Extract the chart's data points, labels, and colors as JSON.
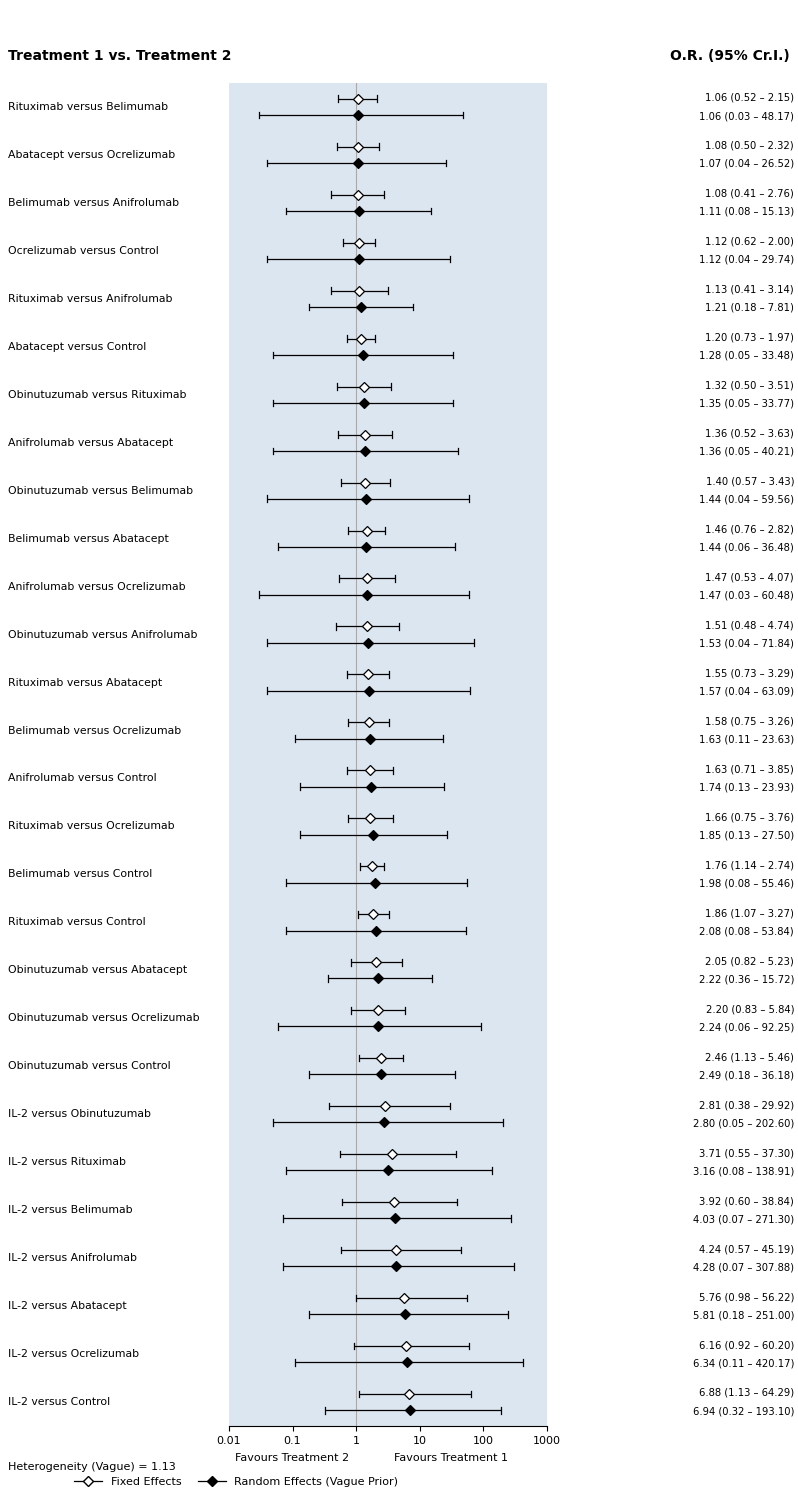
{
  "title_left": "Treatment 1 vs. Treatment 2",
  "title_right": "O.R. (95% Cr.I.)",
  "rows": [
    {
      "label": "Rituximab versus Belimumab",
      "fixed_or": 1.06,
      "fixed_lo": 0.52,
      "fixed_hi": 2.15,
      "random_or": 1.06,
      "random_lo": 0.03,
      "random_hi": 48.17,
      "text1": "1.06 (0.52 – 2.15)",
      "text2": "1.06 (0.03 – 48.17)"
    },
    {
      "label": "Abatacept versus Ocrelizumab",
      "fixed_or": 1.08,
      "fixed_lo": 0.5,
      "fixed_hi": 2.32,
      "random_or": 1.07,
      "random_lo": 0.04,
      "random_hi": 26.52,
      "text1": "1.08 (0.50 – 2.32)",
      "text2": "1.07 (0.04 – 26.52)"
    },
    {
      "label": "Belimumab versus Anifrolumab",
      "fixed_or": 1.08,
      "fixed_lo": 0.41,
      "fixed_hi": 2.76,
      "random_or": 1.11,
      "random_lo": 0.08,
      "random_hi": 15.13,
      "text1": "1.08 (0.41 – 2.76)",
      "text2": "1.11 (0.08 – 15.13)"
    },
    {
      "label": "Ocrelizumab versus Control",
      "fixed_or": 1.12,
      "fixed_lo": 0.62,
      "fixed_hi": 2.0,
      "random_or": 1.12,
      "random_lo": 0.04,
      "random_hi": 29.74,
      "text1": "1.12 (0.62 – 2.00)",
      "text2": "1.12 (0.04 – 29.74)"
    },
    {
      "label": "Rituximab versus Anifrolumab",
      "fixed_or": 1.13,
      "fixed_lo": 0.41,
      "fixed_hi": 3.14,
      "random_or": 1.21,
      "random_lo": 0.18,
      "random_hi": 7.81,
      "text1": "1.13 (0.41 – 3.14)",
      "text2": "1.21 (0.18 – 7.81)"
    },
    {
      "label": "Abatacept versus Control",
      "fixed_or": 1.2,
      "fixed_lo": 0.73,
      "fixed_hi": 1.97,
      "random_or": 1.28,
      "random_lo": 0.05,
      "random_hi": 33.48,
      "text1": "1.20 (0.73 – 1.97)",
      "text2": "1.28 (0.05 – 33.48)"
    },
    {
      "label": "Obinutuzumab versus Rituximab",
      "fixed_or": 1.32,
      "fixed_lo": 0.5,
      "fixed_hi": 3.51,
      "random_or": 1.35,
      "random_lo": 0.05,
      "random_hi": 33.77,
      "text1": "1.32 (0.50 – 3.51)",
      "text2": "1.35 (0.05 – 33.77)"
    },
    {
      "label": "Anifrolumab versus Abatacept",
      "fixed_or": 1.36,
      "fixed_lo": 0.52,
      "fixed_hi": 3.63,
      "random_or": 1.36,
      "random_lo": 0.05,
      "random_hi": 40.21,
      "text1": "1.36 (0.52 – 3.63)",
      "text2": "1.36 (0.05 – 40.21)"
    },
    {
      "label": "Obinutuzumab versus Belimumab",
      "fixed_or": 1.4,
      "fixed_lo": 0.57,
      "fixed_hi": 3.43,
      "random_or": 1.44,
      "random_lo": 0.04,
      "random_hi": 59.56,
      "text1": "1.40 (0.57 – 3.43)",
      "text2": "1.44 (0.04 – 59.56)"
    },
    {
      "label": "Belimumab versus Abatacept",
      "fixed_or": 1.46,
      "fixed_lo": 0.76,
      "fixed_hi": 2.82,
      "random_or": 1.44,
      "random_lo": 0.06,
      "random_hi": 36.48,
      "text1": "1.46 (0.76 – 2.82)",
      "text2": "1.44 (0.06 – 36.48)"
    },
    {
      "label": "Anifrolumab versus Ocrelizumab",
      "fixed_or": 1.47,
      "fixed_lo": 0.53,
      "fixed_hi": 4.07,
      "random_or": 1.47,
      "random_lo": 0.03,
      "random_hi": 60.48,
      "text1": "1.47 (0.53 – 4.07)",
      "text2": "1.47 (0.03 – 60.48)"
    },
    {
      "label": "Obinutuzumab versus Anifrolumab",
      "fixed_or": 1.51,
      "fixed_lo": 0.48,
      "fixed_hi": 4.74,
      "random_or": 1.53,
      "random_lo": 0.04,
      "random_hi": 71.84,
      "text1": "1.51 (0.48 – 4.74)",
      "text2": "1.53 (0.04 – 71.84)"
    },
    {
      "label": "Rituximab versus Abatacept",
      "fixed_or": 1.55,
      "fixed_lo": 0.73,
      "fixed_hi": 3.29,
      "random_or": 1.57,
      "random_lo": 0.04,
      "random_hi": 63.09,
      "text1": "1.55 (0.73 – 3.29)",
      "text2": "1.57 (0.04 – 63.09)"
    },
    {
      "label": "Belimumab versus Ocrelizumab",
      "fixed_or": 1.58,
      "fixed_lo": 0.75,
      "fixed_hi": 3.26,
      "random_or": 1.63,
      "random_lo": 0.11,
      "random_hi": 23.63,
      "text1": "1.58 (0.75 – 3.26)",
      "text2": "1.63 (0.11 – 23.63)"
    },
    {
      "label": "Anifrolumab versus Control",
      "fixed_or": 1.63,
      "fixed_lo": 0.71,
      "fixed_hi": 3.85,
      "random_or": 1.74,
      "random_lo": 0.13,
      "random_hi": 23.93,
      "text1": "1.63 (0.71 – 3.85)",
      "text2": "1.74 (0.13 – 23.93)"
    },
    {
      "label": "Rituximab versus Ocrelizumab",
      "fixed_or": 1.66,
      "fixed_lo": 0.75,
      "fixed_hi": 3.76,
      "random_or": 1.85,
      "random_lo": 0.13,
      "random_hi": 27.5,
      "text1": "1.66 (0.75 – 3.76)",
      "text2": "1.85 (0.13 – 27.50)"
    },
    {
      "label": "Belimumab versus Control",
      "fixed_or": 1.76,
      "fixed_lo": 1.14,
      "fixed_hi": 2.74,
      "random_or": 1.98,
      "random_lo": 0.08,
      "random_hi": 55.46,
      "text1": "1.76 (1.14 – 2.74)",
      "text2": "1.98 (0.08 – 55.46)"
    },
    {
      "label": "Rituximab versus Control",
      "fixed_or": 1.86,
      "fixed_lo": 1.07,
      "fixed_hi": 3.27,
      "random_or": 2.08,
      "random_lo": 0.08,
      "random_hi": 53.84,
      "text1": "1.86 (1.07 – 3.27)",
      "text2": "2.08 (0.08 – 53.84)"
    },
    {
      "label": "Obinutuzumab versus Abatacept",
      "fixed_or": 2.05,
      "fixed_lo": 0.82,
      "fixed_hi": 5.23,
      "random_or": 2.22,
      "random_lo": 0.36,
      "random_hi": 15.72,
      "text1": "2.05 (0.82 – 5.23)",
      "text2": "2.22 (0.36 – 15.72)"
    },
    {
      "label": "Obinutuzumab versus Ocrelizumab",
      "fixed_or": 2.2,
      "fixed_lo": 0.83,
      "fixed_hi": 5.84,
      "random_or": 2.24,
      "random_lo": 0.06,
      "random_hi": 92.25,
      "text1": "2.20 (0.83 – 5.84)",
      "text2": "2.24 (0.06 – 92.25)"
    },
    {
      "label": "Obinutuzumab versus Control",
      "fixed_or": 2.46,
      "fixed_lo": 1.13,
      "fixed_hi": 5.46,
      "random_or": 2.49,
      "random_lo": 0.18,
      "random_hi": 36.18,
      "text1": "2.46 (1.13 – 5.46)",
      "text2": "2.49 (0.18 – 36.18)"
    },
    {
      "label": "IL-2 versus Obinutuzumab",
      "fixed_or": 2.81,
      "fixed_lo": 0.38,
      "fixed_hi": 29.92,
      "random_or": 2.8,
      "random_lo": 0.05,
      "random_hi": 202.6,
      "text1": "2.81 (0.38 – 29.92)",
      "text2": "2.80 (0.05 – 202.60)"
    },
    {
      "label": "IL-2 versus Rituximab",
      "fixed_or": 3.71,
      "fixed_lo": 0.55,
      "fixed_hi": 37.3,
      "random_or": 3.16,
      "random_lo": 0.08,
      "random_hi": 138.91,
      "text1": "3.71 (0.55 – 37.30)",
      "text2": "3.16 (0.08 – 138.91)"
    },
    {
      "label": "IL-2 versus Belimumab",
      "fixed_or": 3.92,
      "fixed_lo": 0.6,
      "fixed_hi": 38.84,
      "random_or": 4.03,
      "random_lo": 0.07,
      "random_hi": 271.3,
      "text1": "3.92 (0.60 – 38.84)",
      "text2": "4.03 (0.07 – 271.30)"
    },
    {
      "label": "IL-2 versus Anifrolumab",
      "fixed_or": 4.24,
      "fixed_lo": 0.57,
      "fixed_hi": 45.19,
      "random_or": 4.28,
      "random_lo": 0.07,
      "random_hi": 307.88,
      "text1": "4.24 (0.57 – 45.19)",
      "text2": "4.28 (0.07 – 307.88)"
    },
    {
      "label": "IL-2 versus Abatacept",
      "fixed_or": 5.76,
      "fixed_lo": 0.98,
      "fixed_hi": 56.22,
      "random_or": 5.81,
      "random_lo": 0.18,
      "random_hi": 251.0,
      "text1": "5.76 (0.98 – 56.22)",
      "text2": "5.81 (0.18 – 251.00)"
    },
    {
      "label": "IL-2 versus Ocrelizumab",
      "fixed_or": 6.16,
      "fixed_lo": 0.92,
      "fixed_hi": 60.2,
      "random_or": 6.34,
      "random_lo": 0.11,
      "random_hi": 420.17,
      "text1": "6.16 (0.92 – 60.20)",
      "text2": "6.34 (0.11 – 420.17)"
    },
    {
      "label": "IL-2 versus Control",
      "fixed_or": 6.88,
      "fixed_lo": 1.13,
      "fixed_hi": 64.29,
      "random_or": 6.94,
      "random_lo": 0.32,
      "random_hi": 193.1,
      "text1": "6.88 (1.13 – 64.29)",
      "text2": "6.94 (0.32 – 193.10)"
    }
  ],
  "xmin": 0.01,
  "xmax": 1000,
  "xticks": [
    0.01,
    0.1,
    1,
    10,
    100,
    1000
  ],
  "xlabel_left": "Favours Treatment 2",
  "xlabel_right": "Favours Treatment 1",
  "heterogeneity_text": "Heterogeneity (Vague) = 1.13",
  "legend_fixed": "Fixed Effects",
  "legend_random": "Random Effects (Vague Prior)",
  "panel_color": "#dce6f0",
  "fig_width": 7.98,
  "fig_height": 15.09,
  "dpi": 100
}
